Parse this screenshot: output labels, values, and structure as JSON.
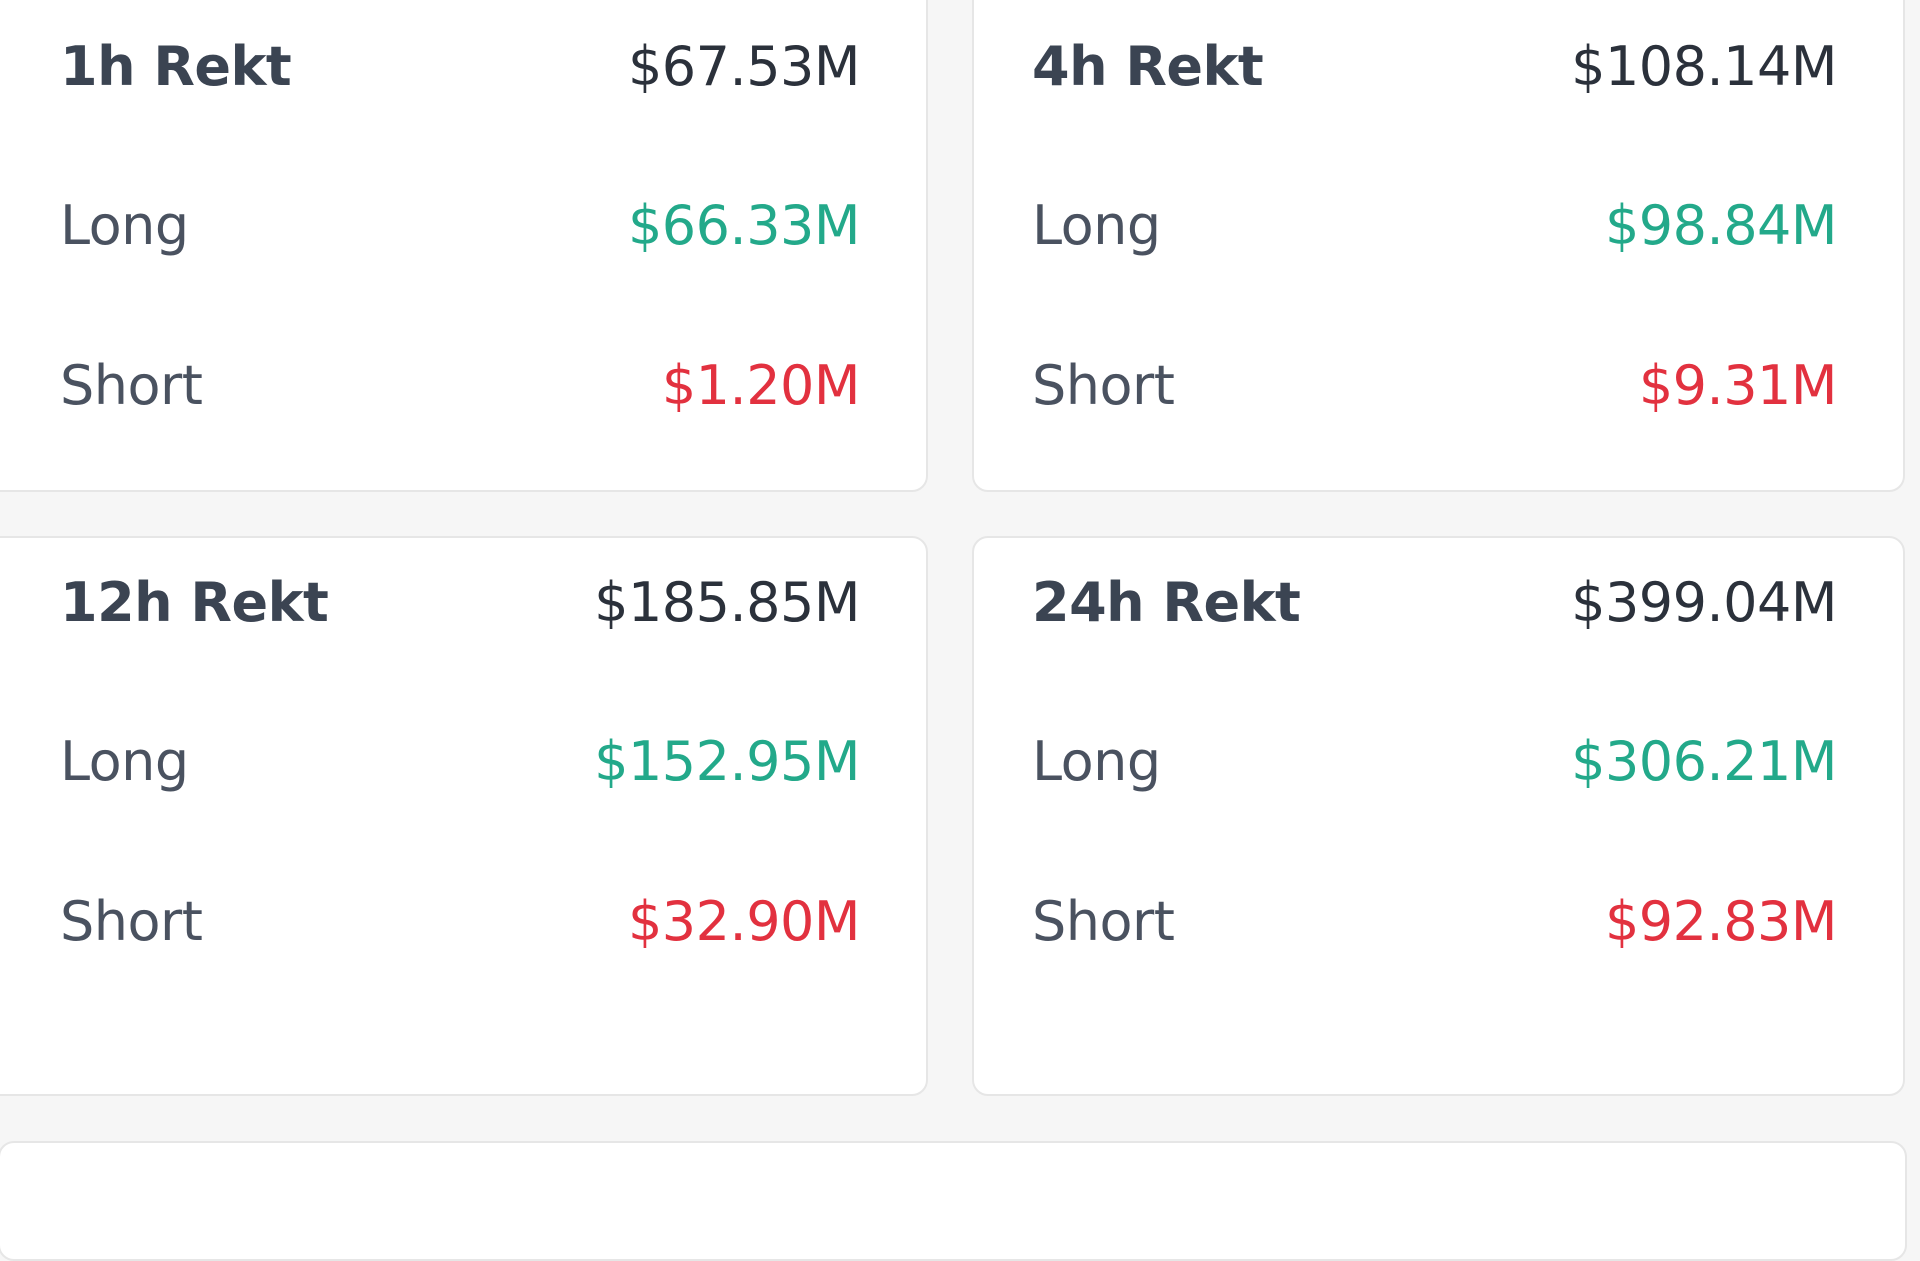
{
  "colors": {
    "long": "#23a98a",
    "short": "#e2313f",
    "text": "#3b4452"
  },
  "cards": [
    {
      "title": "1h Rekt",
      "total": "$67.53M",
      "long_label": "Long",
      "long": "$66.33M",
      "short_label": "Short",
      "short": "$1.20M"
    },
    {
      "title": "4h Rekt",
      "total": "$108.14M",
      "long_label": "Long",
      "long": "$98.84M",
      "short_label": "Short",
      "short": "$9.31M"
    },
    {
      "title": "12h Rekt",
      "total": "$185.85M",
      "long_label": "Long",
      "long": "$152.95M",
      "short_label": "Short",
      "short": "$32.90M"
    },
    {
      "title": "24h Rekt",
      "total": "$399.04M",
      "long_label": "Long",
      "long": "$306.21M",
      "short_label": "Short",
      "short": "$92.83M"
    }
  ]
}
